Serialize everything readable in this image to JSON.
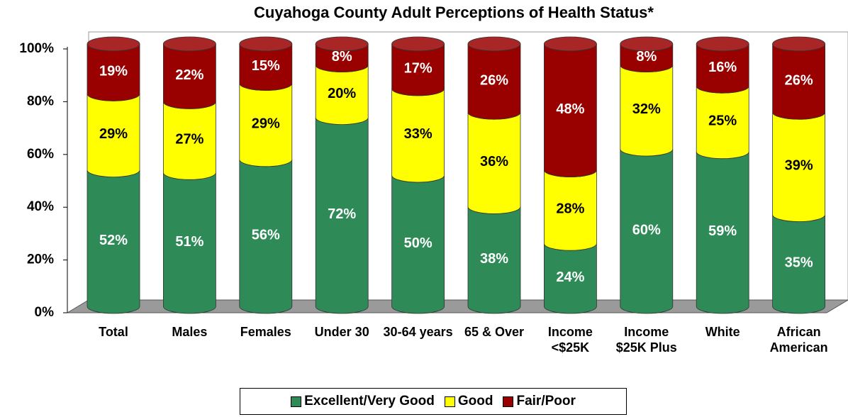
{
  "chart_data": {
    "type": "bar",
    "stacked": true,
    "title": "Cuyahoga County Adult Perceptions of Health Status*",
    "categories": [
      "Total",
      "Males",
      "Females",
      "Under 30",
      "30-64 years",
      "65 & Over",
      "Income <$25K",
      "Income $25K Plus",
      "White",
      "African American"
    ],
    "series": [
      {
        "name": "Excellent/Very Good",
        "color": "#2e8b57",
        "label_color": "#ffffff",
        "values": [
          52,
          51,
          56,
          72,
          50,
          38,
          24,
          60,
          59,
          35
        ],
        "value_labels": [
          "52%",
          "51%",
          "56%",
          "72%",
          "50%",
          "38%",
          "24%",
          "60%",
          "59%",
          "35%"
        ]
      },
      {
        "name": "Good",
        "color": "#ffff00",
        "label_color": "#000000",
        "values": [
          29,
          27,
          29,
          20,
          33,
          36,
          28,
          32,
          25,
          39
        ],
        "value_labels": [
          "29%",
          "27%",
          "29%",
          "20%",
          "33%",
          "36%",
          "28%",
          "32%",
          "25%",
          "39%"
        ]
      },
      {
        "name": "Fair/Poor",
        "color": "#990000",
        "label_color": "#ffffff",
        "values": [
          19,
          22,
          15,
          8,
          17,
          26,
          48,
          8,
          16,
          26
        ],
        "value_labels": [
          "19%",
          "22%",
          "15%",
          "8%",
          "17%",
          "26%",
          "48%",
          "8%",
          "16%",
          "26%"
        ]
      }
    ],
    "ylim": [
      0,
      100
    ],
    "yticks": [
      {
        "value": 0,
        "label": "0%"
      },
      {
        "value": 20,
        "label": "20%"
      },
      {
        "value": 40,
        "label": "40%"
      },
      {
        "value": 60,
        "label": "60%"
      },
      {
        "value": 80,
        "label": "80%"
      },
      {
        "value": 100,
        "label": "100%"
      }
    ],
    "legend": "bottom"
  }
}
